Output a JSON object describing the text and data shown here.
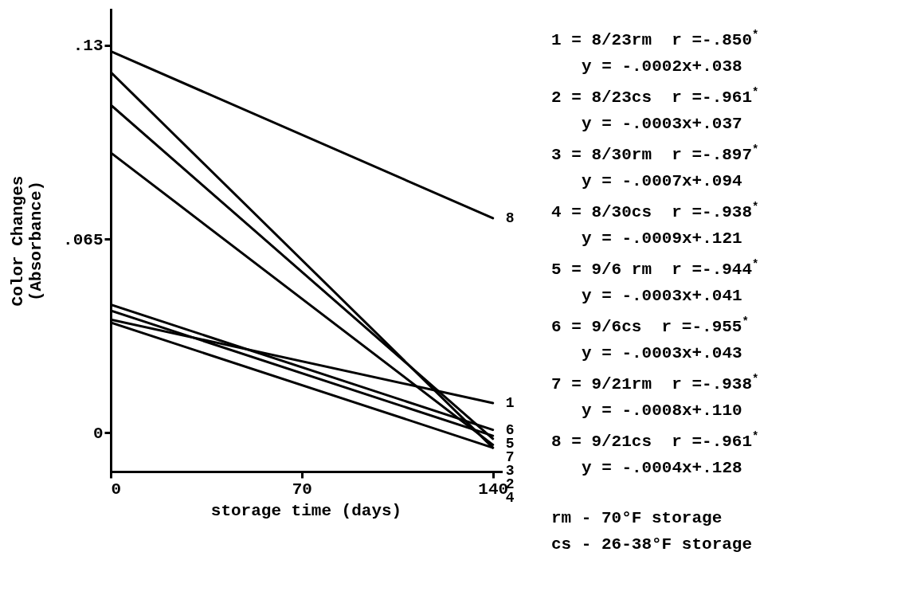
{
  "chart_data": {
    "type": "line",
    "xlabel": "storage time (days)",
    "ylabel": "Color Changes\n(Absorbance)",
    "x": [
      0,
      140
    ],
    "xlim": [
      0,
      143
    ],
    "xticks": [
      0,
      70,
      140
    ],
    "ylim": [
      -0.013,
      0.142
    ],
    "yticks": [
      {
        "value": 0,
        "label": "0"
      },
      {
        "value": 0.065,
        "label": ".065"
      },
      {
        "value": 0.13,
        "label": ".13"
      }
    ],
    "marker": "none",
    "line_style": "solid",
    "grid": false,
    "legend": false,
    "series": [
      {
        "name": "1",
        "color": "#000000",
        "values": [
          0.038,
          0.01
        ]
      },
      {
        "name": "2",
        "color": "#000000",
        "values": [
          0.037,
          -0.005
        ]
      },
      {
        "name": "3",
        "color": "#000000",
        "values": [
          0.094,
          -0.004
        ]
      },
      {
        "name": "4",
        "color": "#000000",
        "values": [
          0.121,
          -0.005
        ]
      },
      {
        "name": "5",
        "color": "#000000",
        "values": [
          0.041,
          -0.001
        ]
      },
      {
        "name": "6",
        "color": "#000000",
        "values": [
          0.043,
          0.001
        ]
      },
      {
        "name": "7",
        "color": "#000000",
        "values": [
          0.11,
          -0.002
        ]
      },
      {
        "name": "8",
        "color": "#000000",
        "values": [
          0.128,
          0.072
        ]
      }
    ],
    "annotations": [
      "1 = 8/23rm  r =-.850$^{*}$",
      "y = -.0002x+.038",
      "2 = 8/23cs  r =-.961$^{*}$",
      "y = -.0003x+.037",
      "3 = 8/30rm  r =-.897$^{*}$",
      "y = -.0007x+.094",
      "4 = 8/30cs  r =-.938$^{*}$",
      "y = -.0009x+.121",
      "5 = 9/6 rm  r =-.944$^{*}$",
      "y = -.0003x+.041",
      "6 = 9/6cs  r =-.955$^{*}$",
      "y = -.0003x+.043",
      "7 = 9/21rm  r =-.938$^{*}$",
      "y = -.0008x+.110",
      "8 = 9/21cs  r =-.961$^{*}$",
      "y = -.0004x+.128",
      "rm - 70°F storage",
      "cs - 26-38°F storage"
    ]
  }
}
